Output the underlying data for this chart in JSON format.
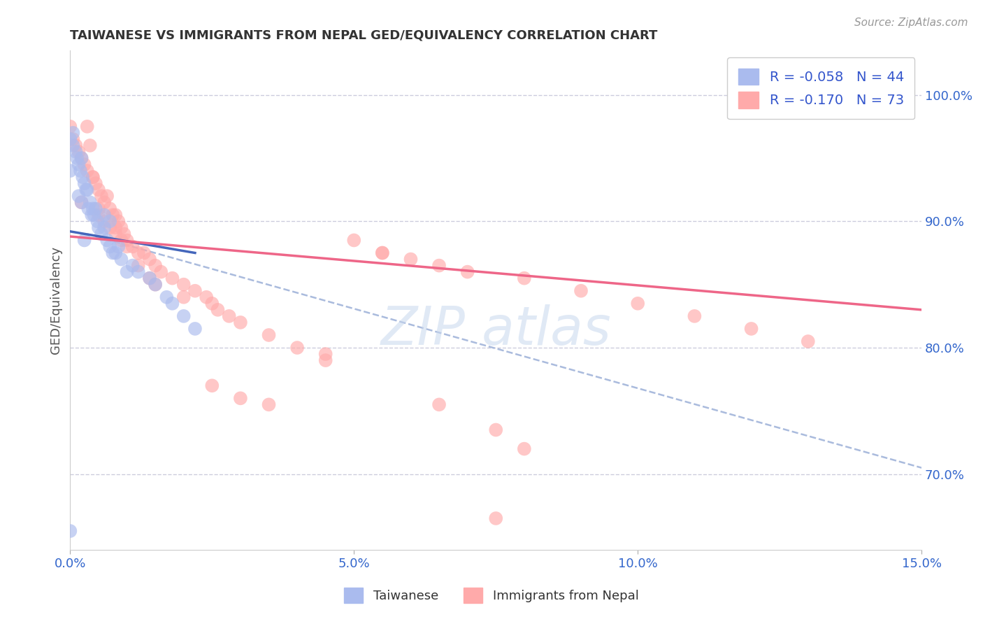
{
  "title": "TAIWANESE VS IMMIGRANTS FROM NEPAL GED/EQUIVALENCY CORRELATION CHART",
  "source_text": "Source: ZipAtlas.com",
  "ylabel": "GED/Equivalency",
  "xlim": [
    0.0,
    15.0
  ],
  "ylim": [
    64.0,
    103.5
  ],
  "xticklabels": [
    "0.0%",
    "5.0%",
    "10.0%",
    "15.0%"
  ],
  "xticks": [
    0.0,
    5.0,
    10.0,
    15.0
  ],
  "ytick_positions": [
    70.0,
    80.0,
    90.0,
    100.0
  ],
  "ytick_labels": [
    "70.0%",
    "80.0%",
    "90.0%",
    "100.0%"
  ],
  "legend_label1": "Taiwanese",
  "legend_label2": "Immigrants from Nepal",
  "R1": -0.058,
  "N1": 44,
  "R2": -0.17,
  "N2": 73,
  "color1": "#AABBEE",
  "color2": "#FFAAAA",
  "line_color1": "#4466BB",
  "line_color2": "#EE6688",
  "dash_color": "#AABBDD",
  "background_color": "#ffffff",
  "tw_line_x": [
    0.0,
    2.2
  ],
  "tw_line_y": [
    89.2,
    87.5
  ],
  "np_line_x": [
    0.0,
    15.0
  ],
  "np_line_y": [
    88.8,
    83.0
  ],
  "dash_line_x": [
    0.3,
    15.0
  ],
  "dash_line_y": [
    89.0,
    70.5
  ],
  "taiwanese_x": [
    0.0,
    0.0,
    0.05,
    0.1,
    0.12,
    0.15,
    0.18,
    0.2,
    0.22,
    0.25,
    0.28,
    0.3,
    0.32,
    0.35,
    0.38,
    0.4,
    0.42,
    0.45,
    0.48,
    0.5,
    0.55,
    0.6,
    0.65,
    0.7,
    0.75,
    0.8,
    0.85,
    0.9,
    1.0,
    1.1,
    1.2,
    1.4,
    1.5,
    1.7,
    1.8,
    2.0,
    2.2,
    0.15,
    0.2,
    0.25,
    0.6,
    0.7,
    0.05,
    0.0
  ],
  "taiwanese_y": [
    65.5,
    96.5,
    96.0,
    95.5,
    95.0,
    94.5,
    94.0,
    95.0,
    93.5,
    93.0,
    92.5,
    92.5,
    91.0,
    91.5,
    90.5,
    91.0,
    90.5,
    91.0,
    90.0,
    89.5,
    89.0,
    89.5,
    88.5,
    88.0,
    87.5,
    87.5,
    88.0,
    87.0,
    86.0,
    86.5,
    86.0,
    85.5,
    85.0,
    84.0,
    83.5,
    82.5,
    81.5,
    92.0,
    91.5,
    88.5,
    90.5,
    90.0,
    97.0,
    94.0
  ],
  "nepal_x": [
    0.0,
    0.05,
    0.1,
    0.15,
    0.2,
    0.25,
    0.3,
    0.35,
    0.4,
    0.45,
    0.5,
    0.55,
    0.6,
    0.65,
    0.7,
    0.75,
    0.8,
    0.85,
    0.9,
    0.95,
    1.0,
    1.1,
    1.2,
    1.3,
    1.4,
    1.5,
    1.6,
    1.8,
    2.0,
    2.2,
    2.4,
    2.5,
    2.6,
    2.8,
    3.0,
    3.5,
    4.0,
    4.5,
    5.0,
    5.5,
    6.0,
    6.5,
    7.0,
    7.5,
    8.0,
    9.0,
    10.0,
    11.0,
    12.0,
    13.0,
    0.3,
    0.4,
    0.5,
    0.6,
    0.7,
    0.8,
    0.9,
    1.0,
    1.2,
    1.4,
    1.5,
    2.0,
    2.5,
    3.0,
    3.5,
    4.5,
    5.5,
    6.5,
    7.5,
    8.0,
    0.2,
    0.5,
    0.8
  ],
  "nepal_y": [
    97.5,
    96.5,
    96.0,
    95.5,
    95.0,
    94.5,
    97.5,
    96.0,
    93.5,
    93.0,
    92.5,
    92.0,
    91.5,
    92.0,
    91.0,
    90.5,
    90.5,
    90.0,
    89.5,
    89.0,
    88.5,
    88.0,
    87.5,
    87.5,
    87.0,
    86.5,
    86.0,
    85.5,
    85.0,
    84.5,
    84.0,
    83.5,
    83.0,
    82.5,
    82.0,
    81.0,
    80.0,
    79.5,
    88.5,
    87.5,
    87.0,
    86.5,
    86.0,
    66.5,
    85.5,
    84.5,
    83.5,
    82.5,
    81.5,
    80.5,
    94.0,
    93.5,
    91.0,
    90.0,
    89.5,
    89.0,
    88.5,
    88.0,
    86.5,
    85.5,
    85.0,
    84.0,
    77.0,
    76.0,
    75.5,
    79.0,
    87.5,
    75.5,
    73.5,
    72.0,
    91.5,
    90.5,
    89.5
  ]
}
